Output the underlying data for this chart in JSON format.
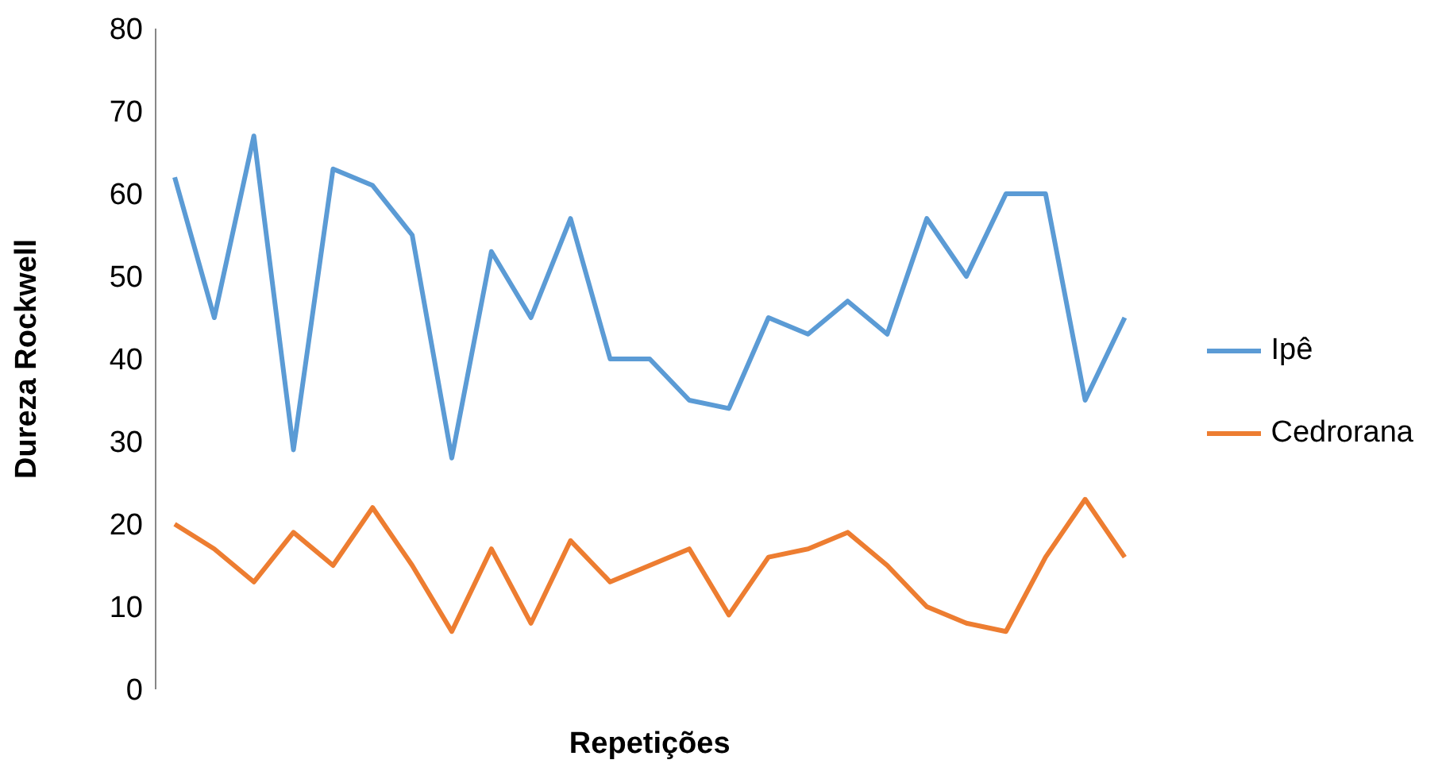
{
  "chart_data": {
    "type": "line",
    "xlabel": "Repetições",
    "ylabel": "Dureza Rockwell",
    "categories": [
      null,
      null,
      null,
      null,
      null,
      null,
      null,
      null,
      null,
      null,
      null,
      null,
      null,
      null,
      null,
      null,
      null,
      null,
      null,
      null,
      null,
      null,
      null,
      null,
      null
    ],
    "series": [
      {
        "name": "Ipê",
        "color": "#5b9bd5",
        "values": [
          62,
          45,
          67,
          29,
          63,
          61,
          55,
          28,
          53,
          45,
          57,
          40,
          40,
          35,
          34,
          45,
          43,
          47,
          43,
          57,
          50,
          60,
          60,
          35,
          45
        ]
      },
      {
        "name": "Cedrorana",
        "color": "#ed7d31",
        "values": [
          20,
          17,
          13,
          19,
          15,
          22,
          15,
          7,
          17,
          8,
          18,
          13,
          15,
          17,
          9,
          16,
          17,
          19,
          15,
          10,
          8,
          7,
          16,
          23,
          16
        ]
      }
    ],
    "ylim": [
      0,
      80
    ],
    "yticks": [
      0,
      10,
      20,
      30,
      40,
      50,
      60,
      70,
      80
    ],
    "grid": false,
    "legend": "right",
    "marker": "none",
    "line_style": "solid"
  }
}
